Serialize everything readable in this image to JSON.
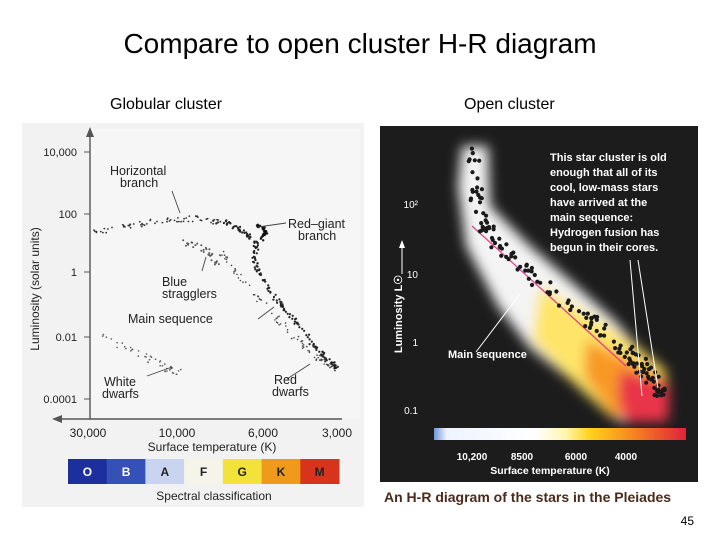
{
  "slide": {
    "title": "Compare to open cluster H-R diagram",
    "left_label": "Globular cluster",
    "right_label": "Open cluster",
    "page_number": "45"
  },
  "globular": {
    "y_axis_label": "Luminosity (solar units)",
    "y_ticks": [
      "10,000",
      "100",
      "1",
      "0.01",
      "0.0001"
    ],
    "x_axis_label": "Surface temperature (K)",
    "x_ticks": [
      "30,000",
      "10,000",
      "6,000",
      "3,000"
    ],
    "annotations": {
      "horizontal_branch": [
        "Horizontal",
        "branch"
      ],
      "red_giant_branch": [
        "Red–giant",
        "branch"
      ],
      "blue_stragglers": [
        "Blue",
        "stragglers"
      ],
      "main_sequence": "Main sequence",
      "white_dwarfs": [
        "White",
        "dwarfs"
      ],
      "red_dwarfs": [
        "Red",
        "dwarfs"
      ]
    },
    "spectral_classes": [
      "O",
      "B",
      "A",
      "F",
      "G",
      "K",
      "M"
    ],
    "spectral_colors": [
      "#1c2f9c",
      "#3550b8",
      "#c9d4f0",
      "#f4f4e8",
      "#f2e23a",
      "#f09a1c",
      "#d8341c"
    ],
    "spectral_caption": "Spectral classification"
  },
  "pleiades": {
    "y_axis_label": "Luminosity L☉",
    "y_ticks": [
      "10²",
      "10",
      "1",
      "0.1"
    ],
    "x_axis_label": "Surface temperature (K)",
    "x_ticks": [
      "10,200",
      "8500",
      "6000",
      "4000"
    ],
    "callout": [
      "This star cluster is old",
      "enough that all of its",
      "cool, low-mass stars",
      "have arrived at the",
      "main sequence:",
      "Hydrogen fusion has",
      "begun in their cores."
    ],
    "main_sequence_label": "Main sequence",
    "caption": "An H-R diagram of the stars in the Pleiades"
  }
}
